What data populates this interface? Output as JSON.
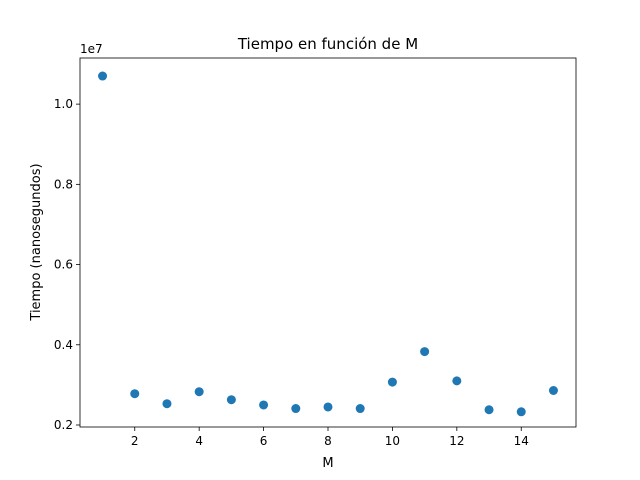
{
  "chart_data": {
    "type": "scatter",
    "title": "Tiempo en función de M",
    "xlabel": "M",
    "ylabel": "Tiempo (nanosegundos)",
    "y_offset_label": "1e7",
    "xlim": [
      0.3,
      15.7
    ],
    "ylim": [
      0.195,
      1.115
    ],
    "x_ticks": [
      2,
      4,
      6,
      8,
      10,
      12,
      14
    ],
    "y_ticks": [
      0.2,
      0.4,
      0.6,
      0.8,
      1.0
    ],
    "y_tick_labels": [
      "0.2",
      "0.4",
      "0.6",
      "0.8",
      "1.0"
    ],
    "grid": false,
    "marker_color": "#1f77b4",
    "series": [
      {
        "x": [
          1,
          2,
          3,
          4,
          5,
          6,
          7,
          8,
          9,
          10,
          11,
          12,
          13,
          14,
          15
        ],
        "y": [
          1.07,
          0.278,
          0.253,
          0.283,
          0.263,
          0.25,
          0.241,
          0.245,
          0.241,
          0.307,
          0.383,
          0.31,
          0.238,
          0.233,
          0.286
        ]
      }
    ]
  }
}
